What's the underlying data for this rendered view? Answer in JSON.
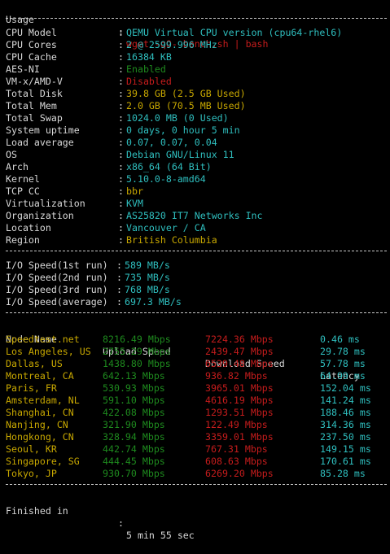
{
  "usage": {
    "label": "Usage",
    "colon": ":",
    "value": "wget -qO- bench.sh | bash"
  },
  "sysinfo": [
    {
      "label": "CPU Model",
      "value": "QEMU Virtual CPU version (cpu64-rhel6)",
      "color": "cyan"
    },
    {
      "label": "CPU Cores",
      "value": "2 @ 2599.996 MHz",
      "color": "cyan"
    },
    {
      "label": "CPU Cache",
      "value": "16384 KB",
      "color": "cyan"
    },
    {
      "label": "AES-NI",
      "value": "Enabled",
      "color": "green"
    },
    {
      "label": "VM-x/AMD-V",
      "value": "Disabled",
      "color": "red"
    },
    {
      "label": "Total Disk",
      "value": "39.8 GB (2.5 GB Used)",
      "color": "yellow"
    },
    {
      "label": "Total Mem",
      "value": "2.0 GB (70.5 MB Used)",
      "color": "yellow"
    },
    {
      "label": "Total Swap",
      "value": "1024.0 MB (0 Used)",
      "color": "cyan"
    },
    {
      "label": "System uptime",
      "value": "0 days, 0 hour 5 min",
      "color": "cyan"
    },
    {
      "label": "Load average",
      "value": "0.07, 0.07, 0.04",
      "color": "cyan"
    },
    {
      "label": "OS",
      "value": "Debian GNU/Linux 11",
      "color": "cyan"
    },
    {
      "label": "Arch",
      "value": "x86_64 (64 Bit)",
      "color": "cyan"
    },
    {
      "label": "Kernel",
      "value": "5.10.0-8-amd64",
      "color": "cyan"
    },
    {
      "label": "TCP CC",
      "value": "bbr",
      "color": "yellow"
    },
    {
      "label": "Virtualization",
      "value": "KVM",
      "color": "cyan"
    },
    {
      "label": "Organization",
      "value": "AS25820 IT7 Networks Inc",
      "color": "cyan"
    },
    {
      "label": "Location",
      "value": "Vancouver / CA",
      "color": "cyan"
    },
    {
      "label": "Region",
      "value": "British Columbia",
      "color": "yellow"
    }
  ],
  "io": [
    {
      "label": "I/O Speed(1st run)",
      "value": "589 MB/s"
    },
    {
      "label": "I/O Speed(2nd run)",
      "value": "735 MB/s"
    },
    {
      "label": "I/O Speed(3rd run)",
      "value": "768 MB/s"
    },
    {
      "label": "I/O Speed(average)",
      "value": "697.3 MB/s"
    }
  ],
  "speed_headers": {
    "node": "Node Name",
    "upload": "Upload Speed",
    "download": "Download Speed",
    "latency": "Latency"
  },
  "speed_rows": [
    {
      "node": "Speedtest.net",
      "upload": "8216.49 Mbps",
      "download": "7224.36 Mbps",
      "latency": "0.46 ms"
    },
    {
      "node": "Los Angeles, US",
      "upload": "2755.29 Mbps",
      "download": "2439.47 Mbps",
      "latency": "29.78 ms"
    },
    {
      "node": "Dallas, US",
      "upload": "1438.80 Mbps",
      "download": "6539.48 Mbps",
      "latency": "57.78 ms"
    },
    {
      "node": "Montreal, CA",
      "upload": "642.13 Mbps",
      "download": "936.82 Mbps",
      "latency": "64.99 ms"
    },
    {
      "node": "Paris, FR",
      "upload": "530.93 Mbps",
      "download": "3965.01 Mbps",
      "latency": "152.04 ms"
    },
    {
      "node": "Amsterdam, NL",
      "upload": "591.10 Mbps",
      "download": "4616.19 Mbps",
      "latency": "141.24 ms"
    },
    {
      "node": "Shanghai, CN",
      "upload": "422.08 Mbps",
      "download": "1293.51 Mbps",
      "latency": "188.46 ms"
    },
    {
      "node": "Nanjing, CN",
      "upload": "321.90 Mbps",
      "download": "122.49 Mbps",
      "latency": "314.36 ms"
    },
    {
      "node": "Hongkong, CN",
      "upload": "328.94 Mbps",
      "download": "3359.01 Mbps",
      "latency": "237.50 ms"
    },
    {
      "node": "Seoul, KR",
      "upload": "442.74 Mbps",
      "download": "767.31 Mbps",
      "latency": "149.15 ms"
    },
    {
      "node": "Singapore, SG",
      "upload": "444.45 Mbps",
      "download": "608.63 Mbps",
      "latency": "170.61 ms"
    },
    {
      "node": "Tokyo, JP",
      "upload": "930.70 Mbps",
      "download": "6269.20 Mbps",
      "latency": "85.28 ms"
    }
  ],
  "finished": {
    "label": "Finished in",
    "colon": ":",
    "value": "5 min 55 sec"
  },
  "colors": {
    "background": "#000000",
    "text": "#d8d8d8",
    "cyan": "#2fbfbf",
    "red": "#c51c1c",
    "green": "#1e8a1e",
    "yellow": "#c8a800"
  }
}
